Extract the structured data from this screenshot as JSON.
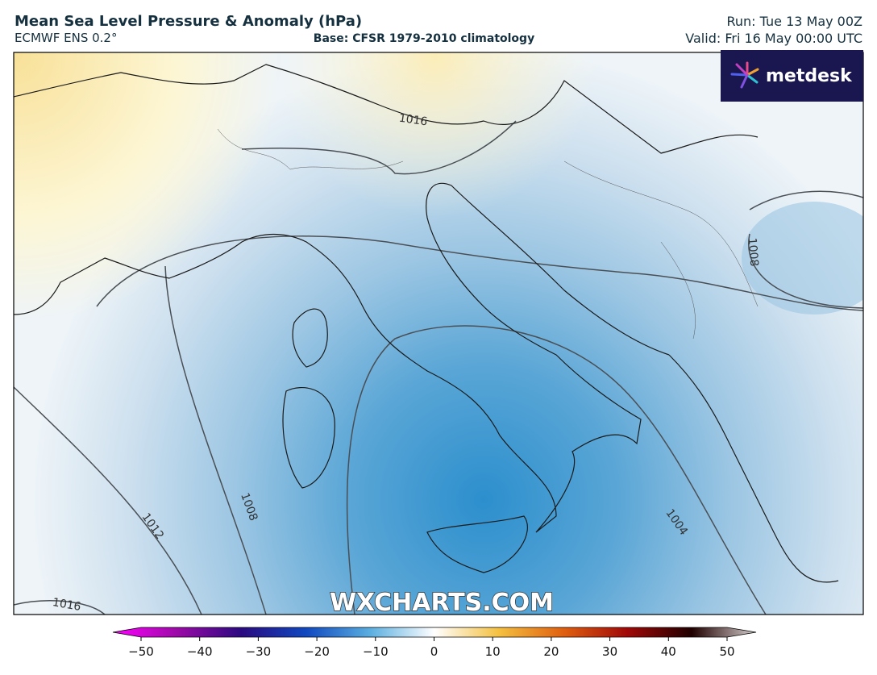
{
  "header": {
    "title": "Mean Sea Level Pressure & Anomaly (hPa)",
    "model": "ECMWF ENS 0.2°",
    "base": "Base: CFSR 1979-2010 climatology",
    "run": "Run: Tue 13 May 00Z",
    "valid": "Valid: Fri 16 May 00:00 UTC"
  },
  "logo": "metdesk",
  "watermark": "WXCHARTS.COM",
  "contour_labels": [
    1016,
    1008,
    1012,
    1008,
    1004,
    1016
  ],
  "colorbar": {
    "ticks": [
      {
        "value": -50,
        "label": "−50"
      },
      {
        "value": -40,
        "label": "−40"
      },
      {
        "value": -30,
        "label": "−30"
      },
      {
        "value": -20,
        "label": "−20"
      },
      {
        "value": -10,
        "label": "−10"
      },
      0,
      10,
      20,
      30,
      40,
      50
    ]
  }
}
